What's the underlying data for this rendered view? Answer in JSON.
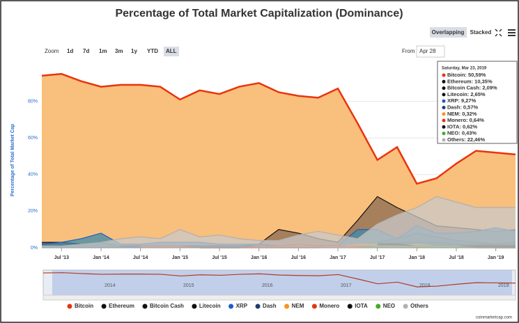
{
  "chart_data": {
    "type": "area",
    "title": "Percentage of Total Market Capitalization (Dominance)",
    "y_label": "Percentage of Total Market Cap",
    "categories": [
      null,
      "Jul '13",
      null,
      "Jan '14",
      null,
      "Jul '14",
      null,
      "Jan '15",
      null,
      "Jul '15",
      null,
      "Jan '16",
      null,
      "Jul '16",
      null,
      "Jan '17",
      null,
      "Jul '17",
      null,
      "Jan '18",
      null,
      "Jul '18",
      null,
      "Jan '19",
      null
    ],
    "ylim": [
      0,
      100
    ],
    "yticks": [
      {
        "value": 0,
        "label": "0%"
      },
      {
        "value": 20,
        "label": "20%"
      },
      {
        "value": 40,
        "label": "40%"
      },
      {
        "value": 60,
        "label": "60%"
      },
      {
        "value": 80,
        "label": "80%"
      }
    ],
    "series": [
      {
        "name": "Bitcoin",
        "color": "#e8340c",
        "fill": "#f9bf7c",
        "values": [
          94,
          95,
          91,
          88,
          89,
          89,
          88,
          81,
          86,
          84,
          88,
          90,
          85,
          83,
          82,
          87,
          68,
          48,
          55,
          35,
          38,
          46,
          53,
          52,
          51
        ]
      },
      {
        "name": "Ethereum",
        "color": "#111111",
        "fill": "#8a6a52",
        "values": [
          null,
          null,
          null,
          null,
          null,
          null,
          null,
          null,
          null,
          0,
          1,
          2,
          10,
          8,
          5,
          3,
          15,
          28,
          22,
          17,
          12,
          11,
          10,
          9,
          10
        ]
      },
      {
        "name": "Bitcoin Cash",
        "color": "#111111",
        "fill": "#6b6b6b",
        "values": [
          null,
          null,
          null,
          null,
          null,
          null,
          null,
          null,
          null,
          null,
          null,
          null,
          null,
          null,
          null,
          null,
          null,
          3,
          5,
          8,
          6,
          4,
          3,
          2,
          2
        ]
      },
      {
        "name": "Litecoin",
        "color": "#111111",
        "fill": "#555555",
        "values": [
          3,
          3,
          2,
          3,
          1,
          1,
          1,
          1,
          1,
          1,
          1,
          1,
          1,
          1,
          1,
          1,
          2,
          2,
          3,
          3,
          3,
          2,
          2,
          2,
          3
        ]
      },
      {
        "name": "XRP",
        "color": "#1e5bc6",
        "fill": "#3d8aa8",
        "values": [
          2,
          3,
          5,
          8,
          2,
          2,
          3,
          3,
          3,
          2,
          2,
          2,
          1,
          1,
          1,
          1,
          10,
          10,
          5,
          12,
          8,
          8,
          9,
          11,
          9
        ]
      },
      {
        "name": "Dash",
        "color": "#1c3d6e",
        "fill": "#2f5a7a",
        "values": [
          null,
          null,
          null,
          null,
          1,
          1,
          1,
          1,
          1,
          1,
          1,
          1,
          1,
          1,
          1,
          1,
          2,
          2,
          2,
          1,
          1,
          1,
          1,
          1,
          1
        ]
      },
      {
        "name": "NEM",
        "color": "#f7931a",
        "fill": "#f7b36a",
        "values": [
          null,
          null,
          null,
          null,
          null,
          null,
          null,
          null,
          0,
          0,
          0,
          0,
          0,
          0,
          0,
          1,
          2,
          2,
          1,
          2,
          1,
          1,
          1,
          0,
          0
        ]
      },
      {
        "name": "Monero",
        "color": "#e8340c",
        "fill": "#e87a5a",
        "values": [
          null,
          null,
          null,
          null,
          null,
          1,
          1,
          1,
          0,
          0,
          0,
          1,
          1,
          2,
          1,
          1,
          1,
          1,
          1,
          1,
          1,
          1,
          1,
          1,
          1
        ]
      },
      {
        "name": "IOTA",
        "color": "#111111",
        "fill": "#444444",
        "values": [
          null,
          null,
          null,
          null,
          null,
          null,
          null,
          null,
          null,
          null,
          null,
          null,
          null,
          null,
          null,
          null,
          null,
          2,
          2,
          1,
          1,
          1,
          1,
          1,
          1
        ]
      },
      {
        "name": "NEO",
        "color": "#3fae29",
        "fill": "#6fc25a",
        "values": [
          null,
          null,
          null,
          null,
          null,
          null,
          null,
          null,
          null,
          null,
          null,
          null,
          null,
          null,
          null,
          null,
          0,
          1,
          1,
          1,
          1,
          1,
          0,
          0,
          0
        ]
      },
      {
        "name": "Others",
        "color": "#b0b0b0",
        "fill": "#c8c8c8",
        "values": [
          1,
          1,
          2,
          3,
          5,
          6,
          5,
          10,
          6,
          7,
          5,
          4,
          4,
          7,
          9,
          7,
          5,
          13,
          18,
          22,
          28,
          25,
          22,
          22,
          22
        ]
      }
    ],
    "tooltip": {
      "title": "Saturday, Mar 23, 2019",
      "items": [
        "Bitcoin: 50,59%",
        "Ethereum: 10,35%",
        "Bitcoin Cash: 2,09%",
        "Litecoin: 2,65%",
        "XRP: 9,27%",
        "Dash: 0,57%",
        "NEM: 0,32%",
        "Monero: 0,64%",
        "IOTA: 0,62%",
        "NEO: 0,43%",
        "Others: 22,46%"
      ]
    },
    "controls": {
      "zoom": "Zoom",
      "buttons": [
        "1d",
        "7d",
        "1m",
        "3m",
        "1y",
        "YTD",
        "ALL"
      ],
      "from": "From",
      "from_value": "Apr 28",
      "modes": [
        "Overlapping",
        "Stacked"
      ]
    },
    "navigator": {
      "labels": [
        "2014",
        "2015",
        "2016",
        "2017",
        "2018",
        "2019"
      ]
    },
    "credit": "coinmarketcap.com"
  }
}
